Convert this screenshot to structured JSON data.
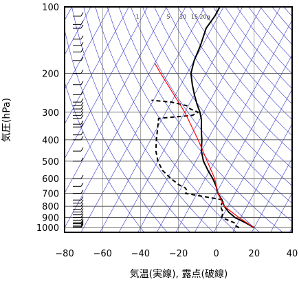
{
  "chart_data": {
    "type": "skew-t",
    "xlabel": "気温(実線), 露点(破線)",
    "ylabel": "気圧(hPa)",
    "x_ticks": [
      -80,
      -60,
      -40,
      -20,
      0,
      20,
      40
    ],
    "y_ticks": [
      100,
      200,
      300,
      400,
      500,
      600,
      700,
      800,
      900,
      1000
    ],
    "xlim": [
      -80,
      40
    ],
    "ylim": [
      1050,
      100
    ],
    "y_scale": "log",
    "mixing_ratio_labels": [
      "1",
      "5",
      "10",
      "15",
      "20g"
    ],
    "colors": {
      "temperature": "#000000",
      "dewpoint": "#000000",
      "parcel": "#ff0000",
      "guides": "#3333cc",
      "wind": "#000000"
    },
    "series": [
      {
        "name": "",
        "style": "solid",
        "pressure": [
          1000,
          950,
          900,
          850,
          800,
          750,
          700,
          650,
          600,
          550,
          500,
          450,
          400,
          375,
          350,
          325,
          300,
          275,
          250,
          225,
          200,
          175,
          150,
          125,
          110,
          100
        ],
        "temperature": [
          20,
          14,
          7,
          2,
          -2,
          -5,
          -9,
          -12,
          -16,
          -21,
          -26,
          -30,
          -33,
          -35,
          -37,
          -39,
          -42,
          -46,
          -50,
          -54,
          -58,
          -60,
          -61,
          -63,
          -62,
          -62
        ]
      },
      {
        "name": "",
        "style": "dashed",
        "pressure": [
          1000,
          975,
          950,
          925,
          900,
          850,
          800,
          750,
          700,
          680,
          660,
          640,
          600,
          550,
          500,
          450,
          400,
          350,
          320,
          310,
          300,
          290,
          280,
          270,
          265
        ],
        "dewpoint": [
          12,
          9,
          8,
          4,
          0,
          -1,
          -4,
          -4,
          -26,
          -26,
          -28,
          -32,
          -38,
          -45,
          -50,
          -54,
          -57,
          -60,
          -62,
          -45,
          -43,
          -48,
          -51,
          -60,
          -71
        ]
      },
      {
        "name": "",
        "style": "solid-red",
        "pressure": [
          1000,
          900,
          800,
          700,
          600,
          500,
          400,
          300,
          200,
          180
        ],
        "temperature": [
          20,
          9,
          -2,
          -9,
          -15,
          -24,
          -35,
          -50,
          -74,
          -80
        ]
      }
    ],
    "wind_barb_levels": [
      1000,
      990,
      975,
      960,
      950,
      925,
      900,
      875,
      850,
      825,
      800,
      775,
      750,
      700,
      650,
      600,
      500,
      450,
      400,
      380,
      350,
      340,
      320,
      310,
      300,
      290,
      280,
      270,
      250,
      225,
      200,
      175,
      160,
      150,
      140,
      125,
      120,
      110
    ]
  }
}
